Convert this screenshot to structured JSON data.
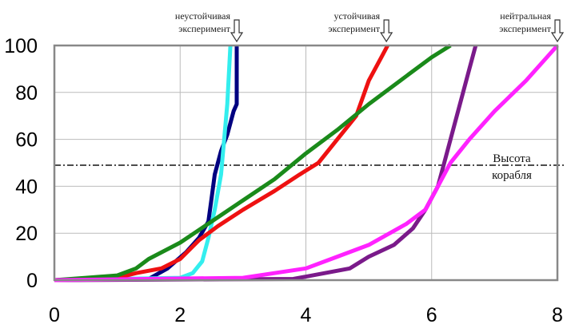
{
  "chart_data": {
    "type": "line",
    "title": "",
    "xlabel": "",
    "ylabel": "",
    "xlim": [
      0,
      8
    ],
    "ylim": [
      0,
      100
    ],
    "x_ticks": [
      "0",
      "2",
      "4",
      "6",
      "8"
    ],
    "y_ticks": [
      "0",
      "20",
      "40",
      "60",
      "80",
      "100"
    ],
    "grid": true,
    "series": [
      {
        "color": "#000080",
        "points": [
          [
            0,
            0
          ],
          [
            1.5,
            0.5
          ],
          [
            1.8,
            5
          ],
          [
            2.1,
            12
          ],
          [
            2.3,
            18
          ],
          [
            2.45,
            25
          ],
          [
            2.5,
            35
          ],
          [
            2.55,
            45
          ],
          [
            2.65,
            55
          ],
          [
            2.75,
            62
          ],
          [
            2.85,
            72
          ],
          [
            2.9,
            75
          ],
          [
            2.9,
            100
          ]
        ]
      },
      {
        "color": "#33eeee",
        "points": [
          [
            0,
            0
          ],
          [
            2.0,
            1
          ],
          [
            2.2,
            3
          ],
          [
            2.35,
            8
          ],
          [
            2.45,
            18
          ],
          [
            2.55,
            30
          ],
          [
            2.65,
            45
          ],
          [
            2.7,
            60
          ],
          [
            2.75,
            75
          ],
          [
            2.8,
            100
          ]
        ]
      },
      {
        "color": "#ee1111",
        "points": [
          [
            0,
            0
          ],
          [
            1,
            1
          ],
          [
            1.3,
            3
          ],
          [
            1.7,
            5
          ],
          [
            2,
            9
          ],
          [
            2.3,
            17
          ],
          [
            2.6,
            23
          ],
          [
            3,
            30
          ],
          [
            3.5,
            38
          ],
          [
            3.9,
            45
          ],
          [
            4.2,
            50
          ],
          [
            4.5,
            60
          ],
          [
            4.8,
            70
          ],
          [
            5.0,
            85
          ],
          [
            5.2,
            95
          ],
          [
            5.3,
            100
          ]
        ]
      },
      {
        "color": "#1a8a1a",
        "points": [
          [
            0,
            0
          ],
          [
            0.5,
            1
          ],
          [
            1,
            2
          ],
          [
            1.3,
            5
          ],
          [
            1.5,
            9
          ],
          [
            2,
            16
          ],
          [
            2.5,
            25
          ],
          [
            3,
            34
          ],
          [
            3.5,
            43
          ],
          [
            4,
            54
          ],
          [
            4.5,
            64
          ],
          [
            5,
            75
          ],
          [
            5.5,
            85
          ],
          [
            6,
            95
          ],
          [
            6.3,
            100
          ]
        ]
      },
      {
        "color": "#7a1a8a",
        "points": [
          [
            0,
            0
          ],
          [
            3.8,
            0.5
          ],
          [
            4.3,
            3
          ],
          [
            4.7,
            5
          ],
          [
            5,
            10
          ],
          [
            5.4,
            15
          ],
          [
            5.7,
            22
          ],
          [
            5.9,
            30
          ],
          [
            6.1,
            40
          ],
          [
            6.2,
            50
          ],
          [
            6.4,
            70
          ],
          [
            6.6,
            90
          ],
          [
            6.7,
            100
          ]
        ]
      },
      {
        "color": "#ff22ff",
        "points": [
          [
            0,
            0
          ],
          [
            1.5,
            0.5
          ],
          [
            3,
            1
          ],
          [
            3.5,
            3
          ],
          [
            4,
            5
          ],
          [
            4.5,
            10
          ],
          [
            5,
            15
          ],
          [
            5.6,
            24
          ],
          [
            5.9,
            30
          ],
          [
            6.1,
            40
          ],
          [
            6.3,
            50
          ],
          [
            6.6,
            60
          ],
          [
            7,
            72
          ],
          [
            7.5,
            85
          ],
          [
            8,
            100
          ]
        ]
      }
    ],
    "reference_line": {
      "y": 49,
      "style": "dash-dot",
      "label_line1": "Высота",
      "label_line2": "корабля"
    },
    "annotations": [
      {
        "x": 2.9,
        "line1": "неустойчивая",
        "line2": "эксперимент"
      },
      {
        "x": 5.28,
        "line1": "устойчивая",
        "line2": "эксперимент"
      },
      {
        "x": 8,
        "line1": "нейтральная",
        "line2": "эксперимент"
      }
    ]
  }
}
